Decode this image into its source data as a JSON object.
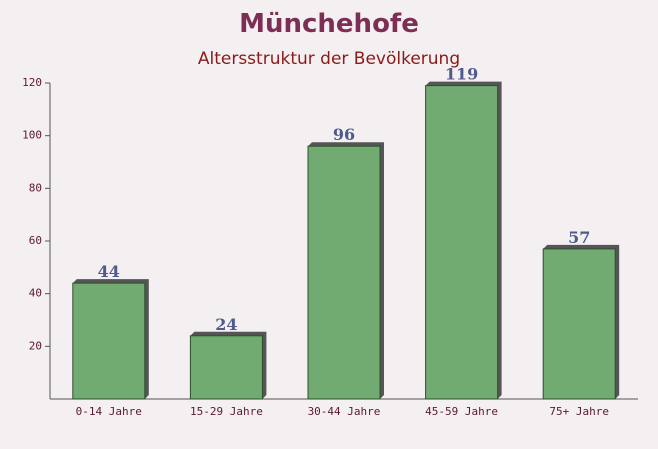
{
  "chart_data": {
    "type": "bar",
    "title": "Münchehofe",
    "subtitle": "Altersstruktur der Bevölkerung",
    "categories": [
      "0-14 Jahre",
      "15-29 Jahre",
      "30-44 Jahre",
      "45-59 Jahre",
      "75+ Jahre"
    ],
    "values": [
      44,
      24,
      96,
      119,
      57
    ],
    "color": "#6aa66a",
    "ylim": [
      0,
      120
    ],
    "yticks": [
      20,
      40,
      60,
      80,
      100,
      120
    ]
  }
}
